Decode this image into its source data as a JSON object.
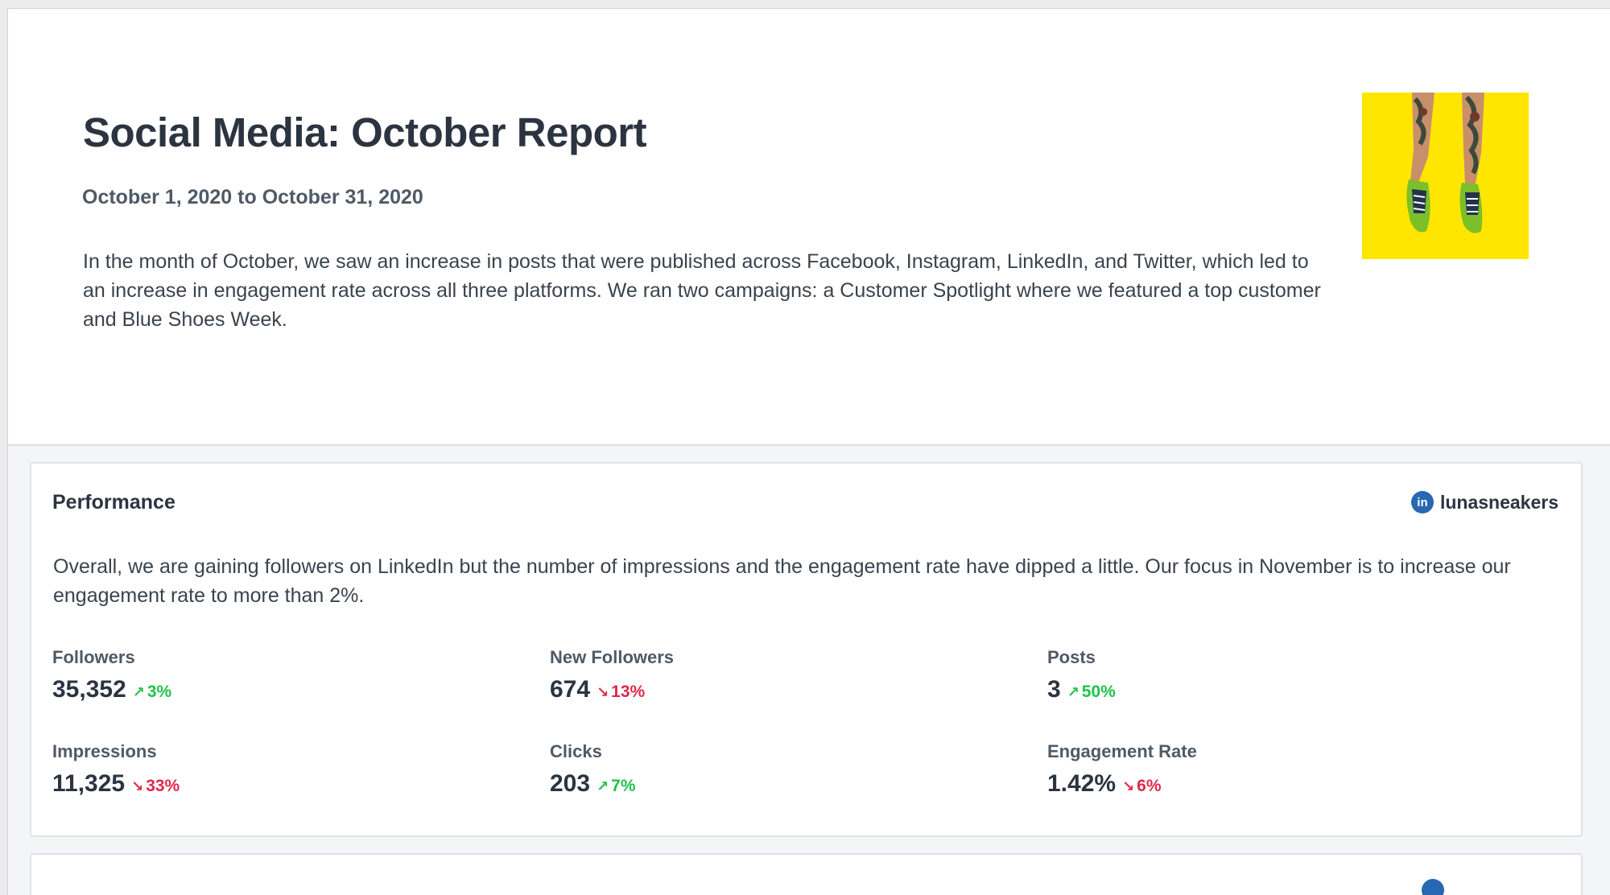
{
  "report": {
    "title": "Social Media: October Report",
    "dates": "October 1, 2020 to October 31, 2020",
    "summary": "In the month of October, we saw an increase in posts that were published across Facebook, Instagram, LinkedIn, and Twitter, which led to an increase in engagement rate across all three platforms. We ran two campaigns: a Customer Spotlight where we featured a top customer and Blue Shoes Week."
  },
  "performance": {
    "title": "Performance",
    "account": {
      "network_icon": "linkedin-icon",
      "network_badge": "in",
      "handle": "lunasneakers"
    },
    "summary": "Overall, we are gaining followers on LinkedIn but the number of impressions and the engagement rate have dipped a little. Our focus in November is to increase our engagement rate to more than 2%.",
    "metrics": [
      {
        "label": "Followers",
        "value": "35,352",
        "change": "3%",
        "direction": "up"
      },
      {
        "label": "New Followers",
        "value": "674",
        "change": "13%",
        "direction": "down"
      },
      {
        "label": "Posts",
        "value": "3",
        "change": "50%",
        "direction": "up"
      },
      {
        "label": "Impressions",
        "value": "11,325",
        "change": "33%",
        "direction": "down"
      },
      {
        "label": "Clicks",
        "value": "203",
        "change": "7%",
        "direction": "up"
      },
      {
        "label": "Engagement Rate",
        "value": "1.42%",
        "change": "6%",
        "direction": "down"
      }
    ]
  },
  "colors": {
    "up": "#1fc24a",
    "down": "#e0294a",
    "linkedin": "#2867b2",
    "cover_background": "#ffe600"
  },
  "arrows": {
    "up": "↗",
    "down": "↘"
  }
}
